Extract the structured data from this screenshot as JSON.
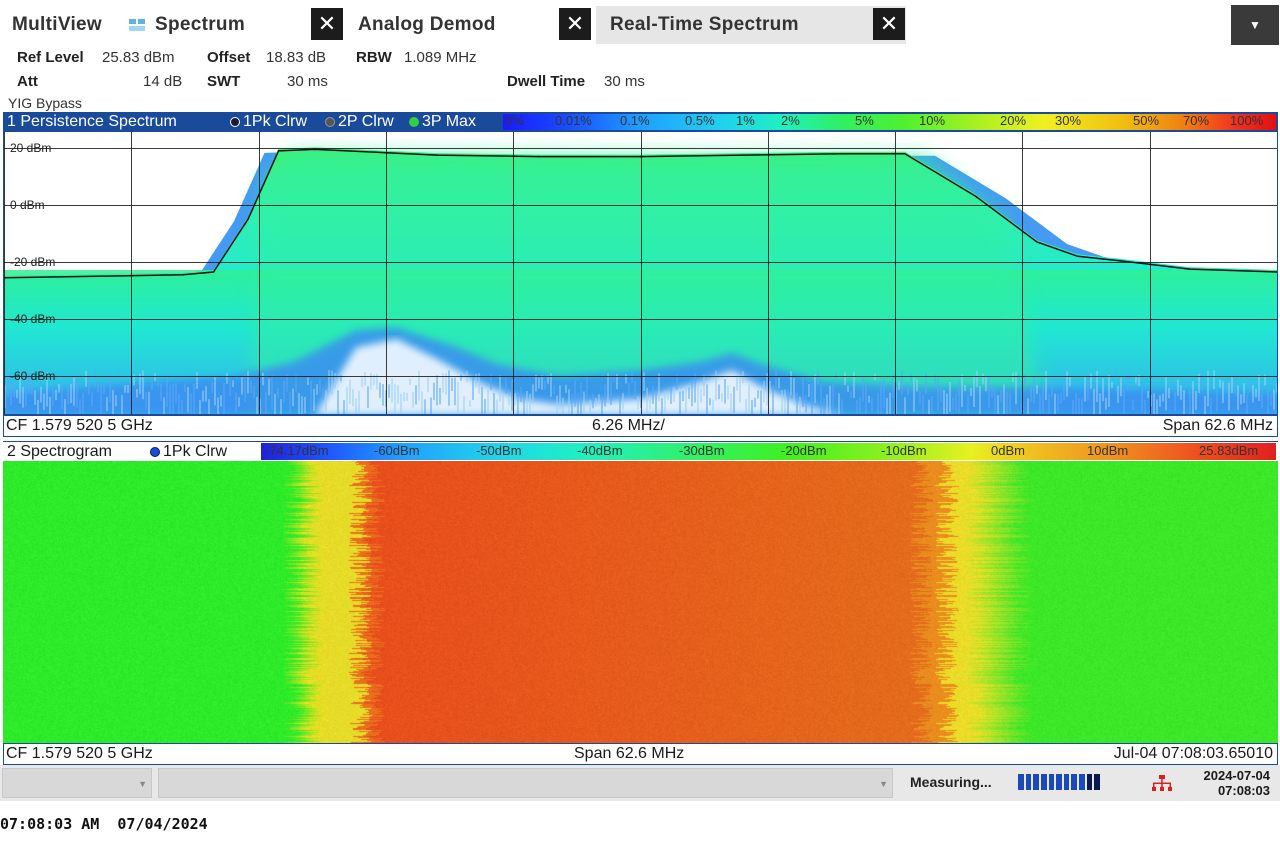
{
  "tabs": [
    {
      "label": "MultiView"
    },
    {
      "label": "Spectrum"
    },
    {
      "label": "Analog Demod"
    },
    {
      "label": "Real-Time Spectrum"
    }
  ],
  "icons": {
    "close": "close-icon",
    "menu": "chevron-down-icon",
    "spectrum": "spectrum-icon",
    "network": "network-icon"
  },
  "settings": {
    "ref_level_label": "Ref Level",
    "ref_level": "25.83 dBm",
    "offset_label": "Offset",
    "offset": "18.83 dB",
    "rbw_label": "RBW",
    "rbw": "1.089 MHz",
    "att_label": "Att",
    "att": "14 dB",
    "swt_label": "SWT",
    "swt": "30 ms",
    "dwell_label": "Dwell Time",
    "dwell": "30 ms",
    "yig": "YIG Bypass"
  },
  "window1": {
    "title": "1 Persistence Spectrum",
    "traces": [
      {
        "label": "1Pk Clrw",
        "color": "#1a1a3a"
      },
      {
        "label": "2P Clrw",
        "color": "#555555"
      },
      {
        "label": "3P Max",
        "color": "#30d040"
      }
    ],
    "colorbar_labels": [
      "0%",
      "0.01%",
      "0.1%",
      "0.5%",
      "1%",
      "2%",
      "5%",
      "10%",
      "20%",
      "30%",
      "50%",
      "70%",
      "100%"
    ],
    "cf": "CF 1.579 520 5 GHz",
    "div": "6.26 MHz/",
    "span": "Span 62.6 MHz"
  },
  "window2": {
    "title": "2 Spectrogram",
    "trace": "1Pk Clrw",
    "colorbar_labels": [
      "-74.17dBm",
      "-60dBm",
      "-50dBm",
      "-40dBm",
      "-30dBm",
      "-20dBm",
      "-10dBm",
      "0dBm",
      "10dBm",
      "25.83dBm"
    ],
    "cf": "CF 1.579 520 5 GHz",
    "span": "Span 62.6 MHz",
    "timestamp": "Jul-04 07:08:03.65010"
  },
  "status": {
    "measuring": "Measuring...",
    "date": "2024-07-04",
    "time": "07:08:03"
  },
  "bottom_timestamp": "07:08:03 AM  07/04/2024",
  "chart_data": {
    "type": "line",
    "title": "1 Persistence Spectrum",
    "xlabel": "",
    "ylabel": "",
    "y_ticks": [
      "20 dBm",
      "0 dBm",
      "-20 dBm",
      "-40 dBm",
      "-60 dBm"
    ],
    "ylim": [
      -70,
      25
    ],
    "x_center_ghz": 1.5795205,
    "x_span_mhz": 62.6,
    "x_div_mhz": 6.26,
    "series": [
      {
        "name": "1Pk Clrw",
        "x_mhz": [
          -31.3,
          -22.5,
          -21.0,
          -19.3,
          -17.8,
          -16.0,
          -10.0,
          -5.0,
          0.0,
          5.0,
          10.0,
          13.0,
          16.5,
          19.5,
          21.5,
          23.5,
          27.0,
          31.3
        ],
        "y_dbm": [
          -25.5,
          -24.5,
          -23.5,
          -5.0,
          19.0,
          19.5,
          17.5,
          17.0,
          17.0,
          17.5,
          18.0,
          18.0,
          3.0,
          -13.0,
          -18.0,
          -19.5,
          -22.5,
          -23.5
        ]
      }
    ]
  }
}
